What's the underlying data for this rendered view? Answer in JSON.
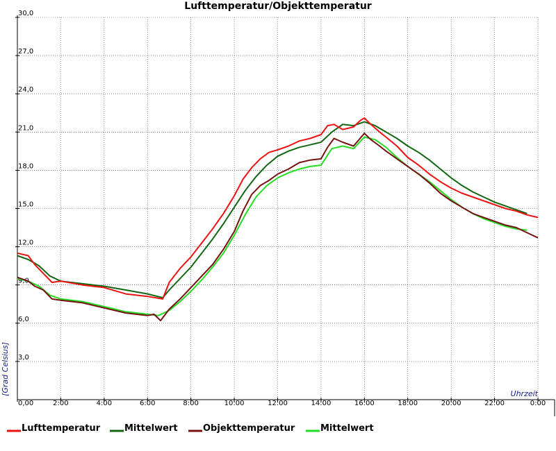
{
  "chart_data": {
    "type": "line",
    "title": "Lufttemperatur/Objekttemperatur",
    "xlabel": "Uhrzeit",
    "ylabel": "[Grad Celsius]",
    "xlim": [
      0,
      24
    ],
    "ylim": [
      0,
      30
    ],
    "x_ticks": [
      0,
      2,
      4,
      6,
      8,
      10,
      12,
      14,
      16,
      18,
      20,
      22,
      24
    ],
    "x_tick_labels": [
      "0,00",
      "2:00",
      "4:00",
      "6:00",
      "8:00",
      "10:00",
      "12:00",
      "14:00",
      "16:00",
      "18:00",
      "20:00",
      "22:00",
      "0:00"
    ],
    "y_ticks": [
      3,
      6,
      9,
      12,
      15,
      18,
      21,
      24,
      27,
      30
    ],
    "y_tick_labels": [
      "3,0",
      "6,0",
      "9,0",
      "12,0",
      "15,0",
      "18,0",
      "21,0",
      "24,0",
      "27,0",
      "30,0"
    ],
    "grid": true,
    "legend_position": "bottom",
    "series": [
      {
        "name": "Lufttemperatur",
        "color": "#ee1111",
        "x": [
          0,
          0.5,
          0.8,
          1.2,
          1.6,
          2.0,
          3.0,
          4.0,
          5.0,
          6.0,
          6.7,
          7.0,
          7.5,
          8.0,
          8.5,
          9.0,
          9.5,
          10.0,
          10.4,
          10.8,
          11.2,
          11.6,
          12.0,
          12.5,
          13.0,
          13.5,
          14.0,
          14.3,
          14.6,
          15.0,
          15.5,
          15.8,
          16.0,
          16.3,
          16.7,
          17.0,
          17.5,
          18.0,
          18.5,
          19.0,
          19.5,
          20.0,
          20.5,
          21.0,
          21.5,
          22.0,
          22.5,
          23.0,
          23.5,
          24.0
        ],
        "y": [
          11.5,
          11.3,
          10.6,
          9.9,
          9.2,
          9.3,
          9.0,
          8.8,
          8.3,
          8.1,
          7.9,
          9.2,
          10.3,
          11.2,
          12.3,
          13.4,
          14.6,
          16.0,
          17.3,
          18.2,
          18.9,
          19.4,
          19.6,
          19.9,
          20.3,
          20.5,
          20.8,
          21.5,
          21.6,
          21.2,
          21.4,
          21.9,
          22.1,
          21.6,
          21.0,
          20.6,
          19.9,
          19.0,
          18.4,
          17.7,
          17.1,
          16.6,
          16.2,
          15.9,
          15.6,
          15.3,
          15.0,
          14.8,
          14.5,
          14.3
        ]
      },
      {
        "name": "Mittelwert",
        "color": "#116611",
        "x": [
          0,
          0.5,
          1.0,
          1.5,
          2.0,
          3.0,
          4.0,
          5.0,
          6.0,
          6.7,
          7.0,
          7.5,
          8.0,
          8.5,
          9.0,
          9.5,
          10.0,
          10.5,
          11.0,
          11.5,
          12.0,
          12.5,
          13.0,
          13.5,
          14.0,
          14.5,
          15.0,
          15.5,
          16.0,
          16.5,
          17.0,
          17.5,
          18.0,
          18.5,
          19.0,
          19.5,
          20.0,
          20.5,
          21.0,
          21.5,
          22.0,
          22.5,
          23.0,
          23.5
        ],
        "y": [
          11.3,
          11.0,
          10.5,
          9.7,
          9.3,
          9.1,
          8.9,
          8.6,
          8.3,
          8.0,
          8.6,
          9.5,
          10.4,
          11.5,
          12.6,
          13.8,
          15.1,
          16.4,
          17.5,
          18.4,
          19.1,
          19.5,
          19.8,
          20.0,
          20.2,
          21.0,
          21.6,
          21.5,
          21.8,
          21.5,
          21.0,
          20.5,
          19.9,
          19.4,
          18.8,
          18.1,
          17.4,
          16.8,
          16.3,
          15.9,
          15.5,
          15.2,
          14.9,
          14.6
        ]
      },
      {
        "name": "Objekttemperatur",
        "color": "#771111",
        "x": [
          0,
          0.5,
          0.8,
          1.2,
          1.6,
          2.0,
          3.0,
          4.0,
          5.0,
          6.0,
          6.3,
          6.6,
          7.0,
          7.5,
          8.0,
          8.5,
          9.0,
          9.5,
          10.0,
          10.4,
          10.8,
          11.2,
          11.6,
          12.0,
          12.5,
          13.0,
          13.5,
          14.0,
          14.3,
          14.6,
          15.0,
          15.5,
          15.8,
          16.0,
          16.3,
          16.7,
          17.0,
          17.5,
          18.0,
          18.5,
          19.0,
          19.5,
          20.0,
          20.5,
          21.0,
          21.5,
          22.0,
          22.5,
          23.0,
          23.5,
          24.0
        ],
        "y": [
          9.6,
          9.3,
          8.9,
          8.6,
          7.9,
          7.8,
          7.6,
          7.2,
          6.8,
          6.6,
          6.7,
          6.2,
          7.1,
          7.9,
          8.8,
          9.7,
          10.6,
          11.8,
          13.2,
          14.8,
          16.1,
          16.8,
          17.2,
          17.7,
          18.1,
          18.6,
          18.8,
          18.9,
          19.8,
          20.5,
          20.2,
          19.9,
          20.5,
          20.9,
          20.4,
          19.9,
          19.5,
          18.9,
          18.3,
          17.7,
          17.0,
          16.2,
          15.6,
          15.1,
          14.6,
          14.3,
          14.0,
          13.7,
          13.5,
          13.1,
          12.7
        ]
      },
      {
        "name": "Mittelwert",
        "color": "#22dd22",
        "x": [
          0,
          0.5,
          1.0,
          1.5,
          2.0,
          3.0,
          4.0,
          5.0,
          6.0,
          6.5,
          7.0,
          7.5,
          8.0,
          8.5,
          9.0,
          9.5,
          10.0,
          10.5,
          11.0,
          11.5,
          12.0,
          12.5,
          13.0,
          13.5,
          14.0,
          14.5,
          15.0,
          15.5,
          16.0,
          16.5,
          17.0,
          17.5,
          18.0,
          18.5,
          19.0,
          19.5,
          20.0,
          20.5,
          21.0,
          21.5,
          22.0,
          22.5,
          23.0,
          23.5
        ],
        "y": [
          9.5,
          9.3,
          8.9,
          8.2,
          7.9,
          7.7,
          7.3,
          6.9,
          6.7,
          6.6,
          7.0,
          7.7,
          8.5,
          9.4,
          10.4,
          11.5,
          12.9,
          14.5,
          15.9,
          16.8,
          17.4,
          17.8,
          18.1,
          18.3,
          18.4,
          19.7,
          19.9,
          19.7,
          20.6,
          20.4,
          19.8,
          19.0,
          18.3,
          17.7,
          17.1,
          16.4,
          15.7,
          15.1,
          14.6,
          14.2,
          13.9,
          13.6,
          13.4,
          13.3
        ]
      }
    ]
  }
}
